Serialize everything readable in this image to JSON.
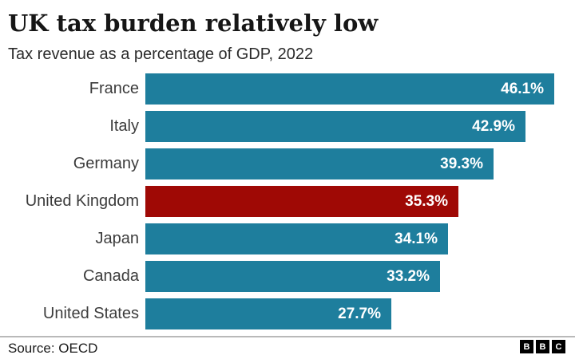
{
  "header": {
    "title": "UK tax burden relatively low",
    "subtitle": "Tax revenue as a percentage of GDP, 2022"
  },
  "chart_data": {
    "type": "bar",
    "orientation": "horizontal",
    "title": "UK tax burden relatively low",
    "subtitle": "Tax revenue as a percentage of GDP, 2022",
    "categories": [
      "France",
      "Italy",
      "Germany",
      "United Kingdom",
      "Japan",
      "Canada",
      "United States"
    ],
    "values": [
      46.1,
      42.9,
      39.3,
      35.3,
      34.1,
      33.2,
      27.7
    ],
    "value_labels": [
      "46.1%",
      "42.9%",
      "39.3%",
      "35.3%",
      "34.1%",
      "33.2%",
      "27.7%"
    ],
    "highlight_category": "United Kingdom",
    "xlim": [
      0,
      46.1
    ],
    "grid": false,
    "legend": false,
    "colors": {
      "bar": "#1e7e9d",
      "highlight": "#9f0905",
      "value_label": "#ffffff"
    }
  },
  "footer": {
    "source": "Source: OECD",
    "logo_letters": [
      "B",
      "B",
      "C"
    ]
  }
}
